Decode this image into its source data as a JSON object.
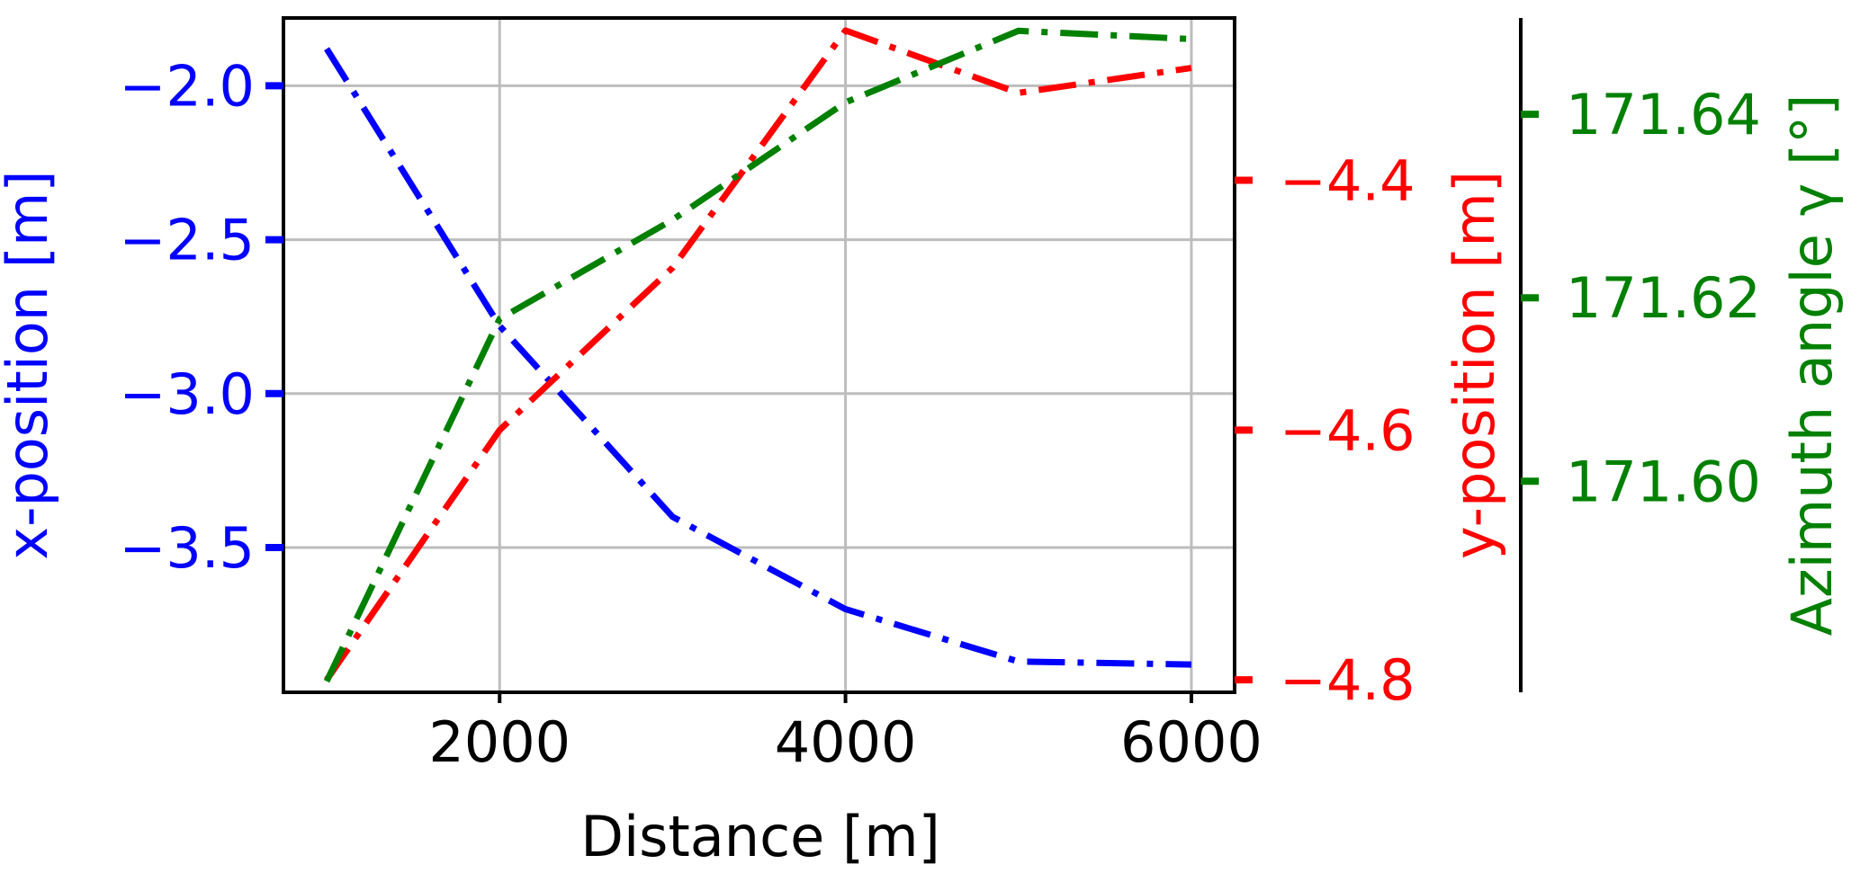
{
  "chart_data": {
    "type": "line",
    "x": [
      1000,
      2000,
      3000,
      4000,
      5000,
      6000
    ],
    "xlabel": "Distance [m]",
    "xlim": [
      750,
      6250
    ],
    "xticks": [
      2000,
      4000,
      6000
    ],
    "xtick_labels": [
      "2000",
      "4000",
      "6000"
    ],
    "grid": true,
    "line_style": "dash-dot",
    "series": [
      {
        "key": "x",
        "color": "#0000ff",
        "axis_position": "left",
        "values": [
          -1.88,
          -2.78,
          -3.4,
          -3.7,
          -3.87,
          -3.88
        ],
        "ylabel": "x-position [m]",
        "ylim": [
          -3.97,
          -1.78
        ],
        "ticks": [
          -2.0,
          -2.5,
          -3.0,
          -3.5
        ],
        "tick_labels": [
          "−2.0",
          "−2.5",
          "−3.0",
          "−3.5"
        ]
      },
      {
        "key": "y",
        "color": "#ff0000",
        "axis_position": "right",
        "values": [
          -4.8,
          -4.6,
          -4.47,
          -4.28,
          -4.33,
          -4.31
        ],
        "ylabel": "y-position [m]",
        "ylim": [
          -4.81,
          -4.27
        ],
        "ticks": [
          -4.4,
          -4.6,
          -4.8
        ],
        "tick_labels": [
          "−4.4",
          "−4.6",
          "−4.8"
        ]
      },
      {
        "key": "azimuth",
        "color": "#008000",
        "axis_position": "right-outer",
        "values": [
          171.5782,
          171.6177,
          171.6285,
          171.6413,
          171.6491,
          171.6482
        ],
        "ylabel": "Azimuth angle γ [°]",
        "ylim": [
          171.577,
          171.6505
        ],
        "ticks": [
          171.64,
          171.62,
          171.6
        ],
        "tick_labels": [
          "171.64",
          "171.62",
          "171.60"
        ]
      }
    ]
  }
}
